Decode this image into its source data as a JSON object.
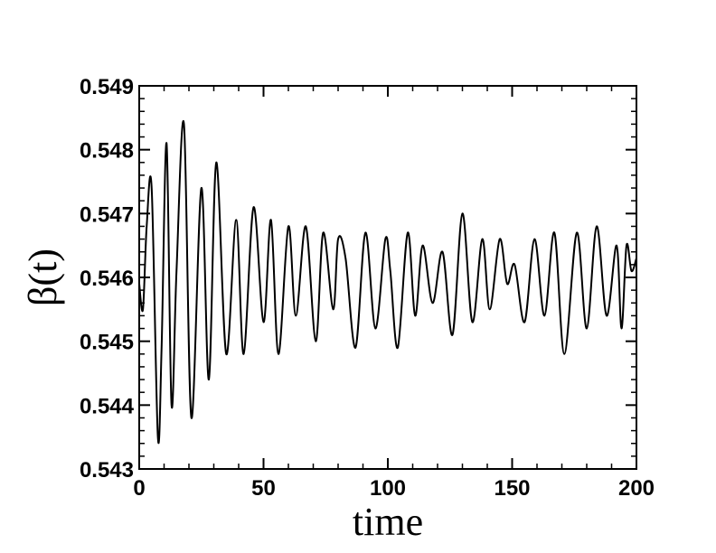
{
  "chart_data": {
    "type": "line",
    "title": "",
    "xlabel": "time",
    "ylabel": "β(t)",
    "xlim": [
      0,
      200
    ],
    "ylim": [
      0.543,
      0.549
    ],
    "x_major_ticks": [
      0,
      50,
      100,
      150,
      200
    ],
    "x_tick_labels": [
      "0",
      "50",
      "100",
      "150",
      "200"
    ],
    "y_major_ticks": [
      0.543,
      0.544,
      0.545,
      0.546,
      0.547,
      0.548,
      0.549
    ],
    "y_tick_labels": [
      "0.543",
      "0.544",
      "0.545",
      "0.546",
      "0.547",
      "0.548",
      "0.549"
    ],
    "grid": false,
    "line_color": "#000000",
    "series": [
      {
        "x": [
          0,
          1.5,
          3,
          5,
          7.5,
          9,
          11,
          13,
          15,
          18,
          21,
          25,
          28,
          31,
          35,
          39,
          42,
          46,
          50,
          53,
          56,
          60,
          63,
          67,
          71,
          74,
          78,
          80,
          83,
          87,
          91,
          95,
          99,
          101,
          104,
          108,
          111,
          114,
          118,
          122,
          126,
          130,
          134,
          138,
          141,
          145,
          148,
          151,
          155,
          159,
          163,
          167,
          171,
          176,
          180,
          184,
          188,
          192,
          194,
          196,
          198,
          200
        ],
        "y": [
          0.5459,
          0.5455,
          0.5468,
          0.5474,
          0.5435,
          0.5449,
          0.5481,
          0.544,
          0.5461,
          0.5484,
          0.5438,
          0.5474,
          0.5444,
          0.5478,
          0.5448,
          0.5469,
          0.5448,
          0.5471,
          0.5453,
          0.5469,
          0.5448,
          0.5468,
          0.5454,
          0.5468,
          0.545,
          0.5467,
          0.5455,
          0.5466,
          0.5463,
          0.5449,
          0.5467,
          0.5452,
          0.5466,
          0.5461,
          0.5449,
          0.5467,
          0.5454,
          0.5465,
          0.5456,
          0.5464,
          0.5451,
          0.547,
          0.5453,
          0.5466,
          0.5455,
          0.5466,
          0.5459,
          0.5462,
          0.5453,
          0.5466,
          0.5454,
          0.5467,
          0.5448,
          0.5467,
          0.5452,
          0.5468,
          0.5454,
          0.5465,
          0.5452,
          0.5465,
          0.5461,
          0.5463
        ]
      }
    ]
  }
}
